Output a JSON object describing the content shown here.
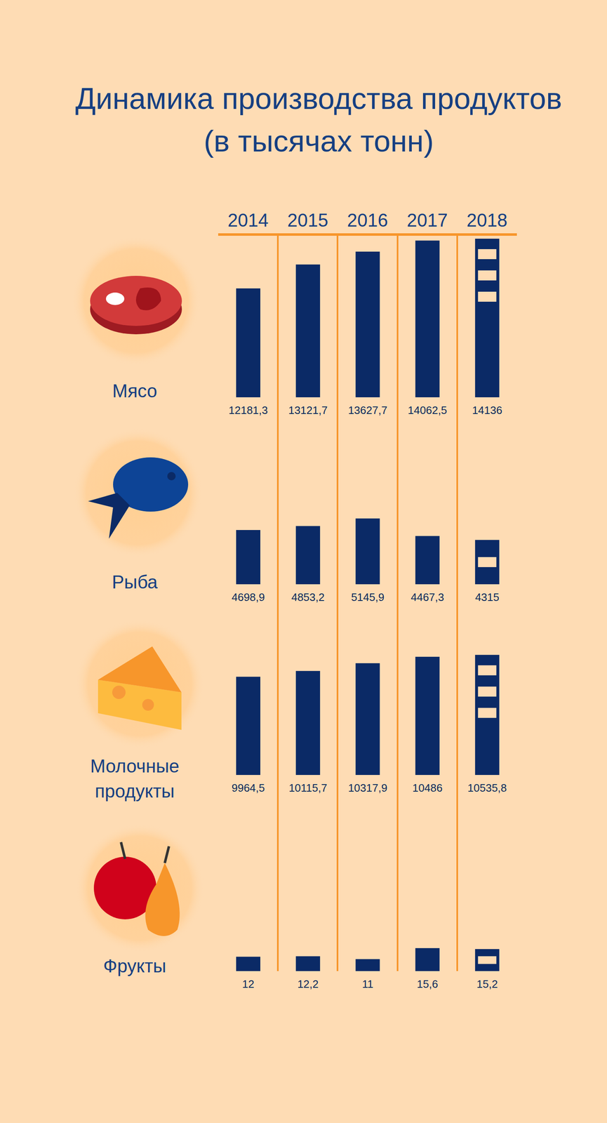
{
  "title": "Динамика производства продуктов (в тысячах тонн)",
  "chart_data": [
    {
      "type": "bar",
      "title": "Мясо",
      "categories": [
        "2014",
        "2015",
        "2016",
        "2017",
        "2018"
      ],
      "values": [
        12181.3,
        13121.7,
        13627.7,
        14062.5,
        14136
      ],
      "value_labels": [
        "12181,3",
        "13121,7",
        "13627,7",
        "14062,5",
        "14136"
      ],
      "color": "#0b2a66",
      "ylim": [
        7900,
        14300
      ],
      "data_labels": true,
      "tick_labels": false
    },
    {
      "type": "bar",
      "title": "Рыба",
      "categories": [
        "2014",
        "2015",
        "2016",
        "2017",
        "2018"
      ],
      "values": [
        4698.9,
        4853.2,
        5145.9,
        4467.3,
        4315
      ],
      "value_labels": [
        "4698,9",
        "4853,2",
        "5145,9",
        "4467,3",
        "4315"
      ],
      "color": "#0b2a66",
      "ylim": [
        2600,
        8900
      ],
      "data_labels": true,
      "tick_labels": false
    },
    {
      "type": "bar",
      "title": "Молочные продукты",
      "categories": [
        "2014",
        "2015",
        "2016",
        "2017",
        "2018"
      ],
      "values": [
        9964.5,
        10115.7,
        10317.9,
        10486,
        10535.8
      ],
      "value_labels": [
        "9964,5",
        "10115,7",
        "10317,9",
        "10486",
        "10535,8"
      ],
      "color": "#0b2a66",
      "ylim": [
        7400,
        11650
      ],
      "data_labels": true,
      "tick_labels": false
    },
    {
      "type": "bar",
      "title": "Фрукты",
      "categories": [
        "2014",
        "2015",
        "2016",
        "2017",
        "2018"
      ],
      "values": [
        12,
        12.2,
        11,
        15.6,
        15.2
      ],
      "value_labels": [
        "12",
        "12,2",
        "11",
        "15,6",
        "15,2"
      ],
      "color": "#0b2a66",
      "ylim": [
        6,
        74
      ],
      "data_labels": true,
      "tick_labels": false
    }
  ]
}
